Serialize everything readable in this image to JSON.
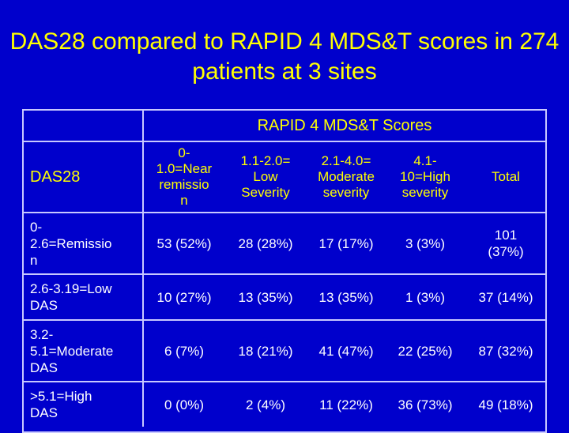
{
  "slide": {
    "title": "DAS28 compared to RAPID 4 MDS&T scores in 274 patients at 3 sites"
  },
  "table": {
    "group_header": "RAPID 4 MDS&T Scores",
    "row_header": "DAS28",
    "columns": [
      "0-\n1.0=Near\nremissio\nn",
      "1.1-2.0=\nLow\nSeverity",
      "2.1-4.0=\nModerate\nseverity",
      "4.1-\n10=High\nseverity",
      "Total"
    ],
    "rows": [
      {
        "label": "0-\n2.6=Remissio\nn",
        "cells": [
          "53 (52%)",
          "28 (28%)",
          "17 (17%)",
          "3 (3%)",
          "101\n(37%)"
        ]
      },
      {
        "label": "2.6-3.19=Low\nDAS",
        "cells": [
          "10 (27%)",
          "13 (35%)",
          "13 (35%)",
          "1 (3%)",
          "37 (14%)"
        ]
      },
      {
        "label": "3.2-\n5.1=Moderate\nDAS",
        "cells": [
          "6 (7%)",
          "18 (21%)",
          "41 (47%)",
          "22 (25%)",
          "87 (32%)"
        ]
      },
      {
        "label": ">5.1=High\nDAS",
        "cells": [
          "0 (0%)",
          "2 (4%)",
          "11 (22%)",
          "36 (73%)",
          "49 (18%)"
        ]
      }
    ]
  },
  "colors": {
    "background": "#0000cc",
    "title": "#ffff00",
    "header_text": "#ffff00",
    "body_text": "#ffffff",
    "grid": "#c8c8ff"
  }
}
